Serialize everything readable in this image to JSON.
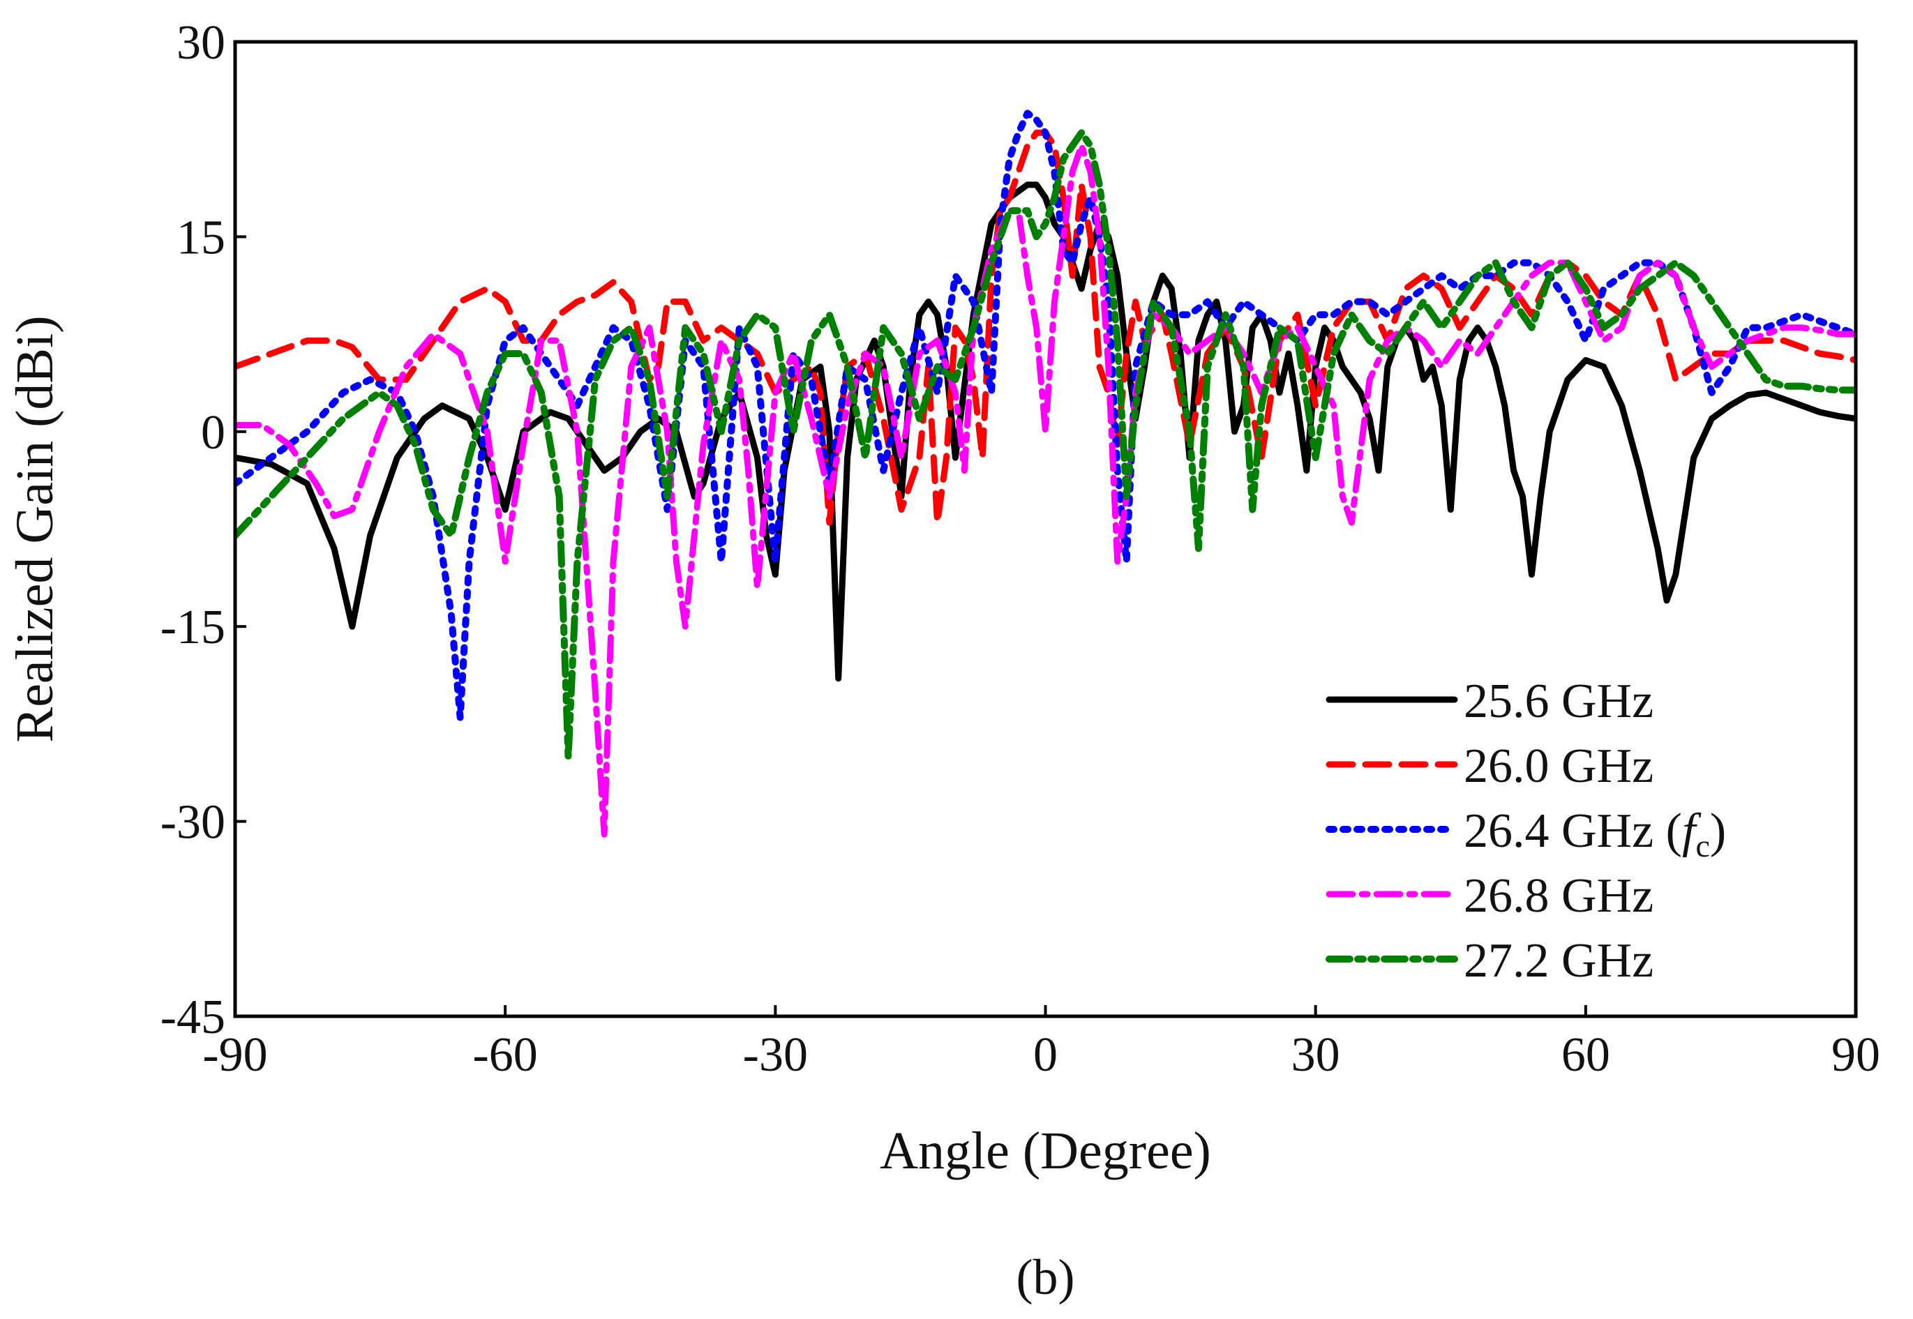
{
  "chart_data": {
    "type": "line",
    "title": "",
    "xlabel": "Angle (Degree)",
    "ylabel": "Realized Gain (dBi)",
    "xlim": [
      -90,
      90
    ],
    "ylim": [
      -45,
      30
    ],
    "xticks": [
      -90,
      -60,
      -30,
      0,
      30,
      60,
      90
    ],
    "yticks": [
      -45,
      -30,
      -15,
      0,
      15,
      30
    ],
    "grid": false,
    "legend_position": "bottom-right",
    "caption": "(b)",
    "series": [
      {
        "name": "25.6 GHz",
        "legend_label": "25.6 GHz",
        "color": "#000000",
        "style": "solid",
        "x": [
          -90,
          -86,
          -82,
          -79,
          -77,
          -75,
          -72,
          -69,
          -67,
          -64,
          -62,
          -60,
          -58,
          -55,
          -53,
          -50,
          -49,
          -47,
          -45,
          -43,
          -41,
          -39,
          -38,
          -36,
          -34,
          -32,
          -31,
          -30,
          -29,
          -27,
          -25,
          -24,
          -23,
          -22,
          -21,
          -19,
          -18,
          -17,
          -16,
          -15,
          -14,
          -13,
          -12,
          -11,
          -10,
          -8,
          -6,
          -4,
          -2,
          -1,
          0,
          1,
          2,
          3,
          4,
          5,
          6,
          7,
          8,
          9,
          10,
          11,
          12,
          13,
          14,
          15,
          16,
          17,
          18,
          19,
          20,
          21,
          22,
          23,
          24,
          25,
          26,
          27,
          28,
          29,
          30,
          31,
          32,
          33,
          34,
          35,
          36,
          37,
          38,
          39,
          40,
          41,
          42,
          43,
          44,
          45,
          46,
          47,
          48,
          49,
          50,
          51,
          52,
          53,
          54,
          55,
          56,
          58,
          60,
          62,
          64,
          66,
          68,
          69,
          70,
          72,
          74,
          76,
          78,
          80,
          82,
          84,
          86,
          88,
          90
        ],
        "y": [
          -2,
          -2.5,
          -4,
          -9,
          -15,
          -8,
          -2,
          1,
          2,
          1,
          -2,
          -6,
          0,
          1.5,
          1,
          -2,
          -3,
          -2,
          0,
          1,
          0,
          -5,
          -4,
          1,
          3,
          -2,
          -8,
          -11,
          -3,
          4,
          5,
          0,
          -19,
          -2,
          4,
          7,
          5,
          0,
          -5,
          4,
          9,
          10,
          9,
          5,
          -2,
          9,
          16,
          18,
          19,
          19,
          18,
          16,
          15,
          13,
          11,
          14,
          16,
          15,
          12,
          6,
          1,
          5,
          10,
          12,
          11,
          6,
          -2,
          7,
          9,
          10,
          7,
          0,
          2,
          8,
          9,
          7,
          3,
          6,
          2,
          -3,
          5,
          8,
          7,
          5,
          4,
          3,
          1,
          -3,
          5,
          7,
          8,
          7,
          4,
          5,
          2,
          -6,
          4,
          7,
          8,
          7,
          5,
          2,
          -3,
          -5,
          -11,
          -5,
          0,
          4,
          5.5,
          5,
          2,
          -3,
          -9,
          -13,
          -11,
          -2,
          1,
          2,
          2.8,
          3,
          2.5,
          2,
          1.5,
          1.2,
          1
        ]
      },
      {
        "name": "26.0 GHz",
        "legend_label": "26.0 GHz",
        "color": "#ff0000",
        "style": "dashed",
        "x": [
          -90,
          -86,
          -82,
          -79,
          -77,
          -74,
          -71,
          -68,
          -65,
          -62,
          -60,
          -58,
          -56,
          -54,
          -52,
          -50,
          -48,
          -46,
          -44,
          -43,
          -42,
          -40,
          -38,
          -36,
          -34,
          -32,
          -30,
          -28,
          -26,
          -25,
          -24,
          -23,
          -22,
          -20,
          -18,
          -16,
          -14,
          -13,
          -12,
          -11,
          -10,
          -9,
          -8,
          -7,
          -6,
          -5,
          -4,
          -3,
          -2,
          -1,
          0,
          1,
          2,
          3,
          4,
          5,
          6,
          7,
          8,
          9,
          10,
          11,
          12,
          13,
          14,
          16,
          18,
          20,
          22,
          24,
          26,
          28,
          30,
          32,
          34,
          36,
          38,
          40,
          42,
          44,
          46,
          48,
          50,
          52,
          54,
          56,
          58,
          60,
          62,
          64,
          66,
          68,
          70,
          72,
          74,
          76,
          78,
          80,
          82,
          84,
          86,
          88,
          90
        ],
        "y": [
          5,
          6,
          7,
          7,
          6.5,
          4,
          4,
          7,
          10,
          11,
          10,
          7,
          7,
          9,
          10,
          10.5,
          11.5,
          10,
          4,
          5,
          10,
          10,
          7,
          8,
          7,
          6,
          3,
          4,
          5,
          3,
          -7,
          0,
          5,
          6,
          1,
          -6,
          -2,
          5,
          -7,
          -2,
          8,
          7,
          4,
          -2,
          12,
          17,
          18,
          20,
          22,
          23,
          23,
          22,
          18,
          12,
          19,
          15,
          5,
          3,
          -1,
          6,
          10,
          7,
          8,
          9,
          6,
          -1,
          6,
          8,
          5,
          -2,
          7,
          9,
          2,
          8,
          10,
          10,
          7,
          11,
          12,
          11,
          8,
          10,
          12,
          11,
          9,
          12,
          13,
          12,
          10,
          9,
          12,
          9,
          4,
          5,
          6,
          6,
          7,
          7,
          7,
          6.5,
          6,
          5.8,
          5.5
        ]
      },
      {
        "name": "26.4 GHz (fc)",
        "legend_label": "26.4 GHz (",
        "legend_italic": "f",
        "legend_sub": "c",
        "legend_suffix": ")",
        "color": "#0000ff",
        "style": "dotted",
        "x": [
          -90,
          -86,
          -82,
          -78,
          -75,
          -72,
          -70,
          -68,
          -66,
          -65,
          -64,
          -62,
          -60,
          -58,
          -56,
          -54,
          -52,
          -50,
          -48,
          -46,
          -44,
          -42,
          -40,
          -38,
          -36,
          -34,
          -32,
          -30,
          -28,
          -26,
          -24,
          -22,
          -20,
          -18,
          -16,
          -14,
          -12,
          -10,
          -8,
          -6,
          -5,
          -4,
          -3,
          -2,
          -1,
          0,
          1,
          2,
          3,
          4,
          5,
          6,
          7,
          8,
          9,
          10,
          12,
          14,
          16,
          18,
          20,
          22,
          24,
          26,
          28,
          30,
          32,
          34,
          36,
          38,
          40,
          42,
          44,
          46,
          48,
          50,
          52,
          54,
          56,
          58,
          60,
          62,
          64,
          66,
          68,
          70,
          72,
          74,
          76,
          78,
          80,
          82,
          84,
          86,
          88,
          90
        ],
        "y": [
          -4,
          -2,
          0,
          3,
          4,
          3,
          0,
          -5,
          -14,
          -22,
          -10,
          2,
          7,
          8,
          6,
          4,
          2,
          5,
          8,
          7,
          2,
          -6,
          7,
          5,
          -10,
          8,
          5,
          -10,
          6,
          4,
          -4,
          5,
          4,
          -3,
          3,
          8,
          3,
          12,
          10,
          3,
          16,
          21,
          23,
          24.5,
          24,
          23,
          20,
          14,
          13,
          16,
          18,
          15,
          10,
          -3,
          -10,
          5,
          10,
          9,
          9,
          10,
          8,
          10,
          9,
          8,
          7,
          9,
          9,
          10,
          10,
          9,
          10,
          11,
          12,
          11,
          12,
          12,
          13,
          13,
          12,
          10,
          7,
          11,
          12,
          13,
          13,
          12,
          8,
          3,
          5,
          8,
          8,
          8.5,
          9,
          8.5,
          8,
          7.5
        ]
      },
      {
        "name": "26.8 GHz",
        "legend_label": "26.8 GHz",
        "color": "#ff00ff",
        "style": "dashdot",
        "x": [
          -90,
          -87,
          -84,
          -81,
          -79,
          -77,
          -74,
          -71,
          -68,
          -65,
          -62,
          -60,
          -58,
          -56,
          -54,
          -52,
          -50,
          -49,
          -48,
          -46,
          -44,
          -42,
          -41,
          -40,
          -38,
          -36,
          -34,
          -33,
          -32,
          -30,
          -28,
          -26,
          -24,
          -22,
          -20,
          -18,
          -16,
          -14,
          -12,
          -10,
          -9,
          -8,
          -6,
          -4,
          -3,
          -2,
          -1,
          0,
          1,
          2,
          3,
          4,
          5,
          6,
          7,
          8,
          9,
          10,
          12,
          14,
          16,
          18,
          20,
          22,
          24,
          26,
          28,
          30,
          32,
          33,
          34,
          36,
          38,
          40,
          42,
          44,
          46,
          48,
          50,
          52,
          54,
          56,
          58,
          60,
          62,
          64,
          66,
          68,
          70,
          72,
          74,
          76,
          78,
          80,
          82,
          84,
          86,
          88,
          90
        ],
        "y": [
          0.5,
          0.5,
          -1,
          -4,
          -6.5,
          -6,
          0,
          5,
          7.5,
          6,
          0,
          -10,
          -1,
          7,
          7,
          0,
          -20,
          -31,
          -10,
          5,
          8,
          0,
          -10,
          -15,
          -1,
          7,
          4,
          -3,
          -12,
          3,
          6,
          1,
          -5,
          2,
          6,
          5,
          -2,
          6,
          7,
          3,
          -3,
          8,
          14,
          17,
          17,
          12,
          8,
          0,
          10,
          15,
          20,
          22,
          20,
          15,
          5,
          -10,
          -5,
          3,
          9,
          8,
          6,
          7,
          8,
          6,
          3,
          7,
          8,
          5,
          2,
          -5,
          -7,
          4,
          7,
          8,
          7,
          5,
          7,
          6,
          8,
          10,
          12,
          13,
          13,
          10,
          7,
          8,
          12,
          13,
          12,
          8,
          5,
          6,
          7,
          7.5,
          8,
          8,
          7.8,
          7.5,
          7.5
        ]
      },
      {
        "name": "27.2 GHz",
        "legend_label": "27.2 GHz",
        "color": "#008000",
        "style": "dashdotdot",
        "x": [
          -90,
          -86,
          -82,
          -78,
          -74,
          -72,
          -70,
          -68,
          -66,
          -64,
          -62,
          -60,
          -58,
          -56,
          -54,
          -53,
          -52,
          -50,
          -48,
          -46,
          -44,
          -42,
          -40,
          -38,
          -36,
          -34,
          -32,
          -30,
          -28,
          -26,
          -24,
          -22,
          -20,
          -18,
          -16,
          -14,
          -12,
          -10,
          -8,
          -6,
          -4,
          -2,
          -1,
          0,
          1,
          2,
          3,
          4,
          5,
          6,
          7,
          8,
          9,
          10,
          12,
          14,
          16,
          17,
          18,
          20,
          22,
          23,
          24,
          26,
          28,
          30,
          32,
          34,
          36,
          38,
          40,
          42,
          44,
          46,
          48,
          50,
          52,
          54,
          56,
          58,
          60,
          62,
          64,
          66,
          68,
          70,
          72,
          74,
          76,
          78,
          80,
          82,
          84,
          86,
          88,
          90
        ],
        "y": [
          -8,
          -5,
          -2,
          1,
          3,
          2,
          -1,
          -6,
          -8,
          -2,
          3,
          6,
          6,
          3,
          -5,
          -25,
          -10,
          4,
          7,
          8,
          4,
          -5,
          8,
          6,
          0,
          7,
          9,
          8,
          0,
          7,
          9,
          5,
          -2,
          8,
          6,
          1,
          5,
          4,
          8,
          13,
          17,
          17,
          15,
          16,
          18,
          21,
          22,
          23,
          22,
          19,
          14,
          7,
          -5,
          2,
          10,
          8,
          0,
          -9,
          5,
          9,
          5,
          -6,
          2,
          8,
          7,
          -2,
          6,
          9,
          7,
          6,
          8,
          10,
          8,
          10,
          12,
          13,
          10,
          8,
          12,
          13,
          11,
          8,
          9,
          11,
          12,
          13,
          12,
          10,
          8,
          6,
          4,
          3.5,
          3.5,
          3.3,
          3.2,
          3.2
        ]
      }
    ]
  }
}
